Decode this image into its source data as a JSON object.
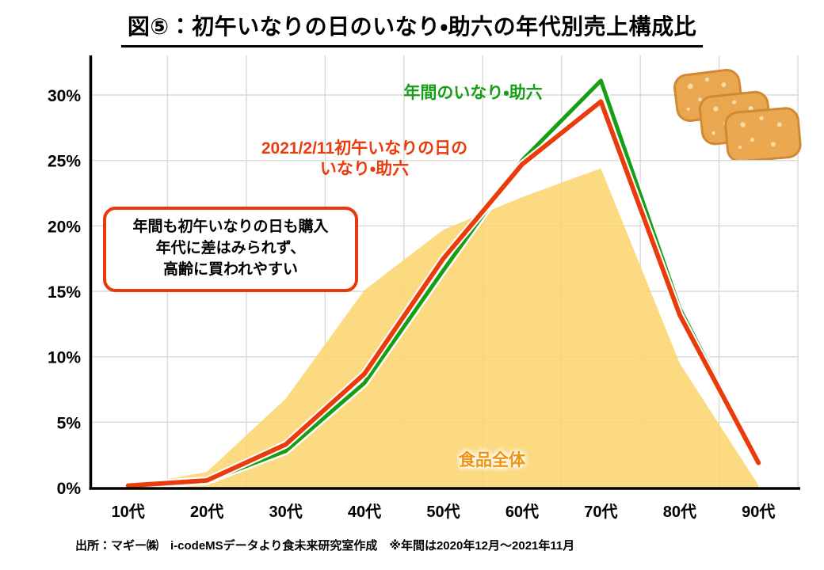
{
  "title": "図⑤：初午いなりの日のいなり・助六の年代別売上構成比",
  "footer": "出所：マギー㈱　i-codeMSデータより食未来研究室作成　※年間は2020年12月～2021年11月",
  "labels": {
    "green_series": "年間のいなり・助六",
    "red_series_line1": "2021/2/11初午いなりの日の",
    "red_series_line2": "いなり・助六",
    "area_series": "食品全体"
  },
  "annotation": {
    "line1": "年間も初午いなりの日も購入",
    "line2": "年代に差はみられず、",
    "line3": "高齢に買われやすい"
  },
  "icons": {
    "inari_illustration": "inari-sushi-three-pieces"
  },
  "colors": {
    "green_line": "#169E16",
    "red_line": "#EA3B0C",
    "area_fill": "#FBD36B",
    "area_label_text": "#EF940F",
    "annotation_border": "#E8380C",
    "gridline": "#D9D9D9",
    "axis": "#000000"
  },
  "chart_data": {
    "type": "area",
    "title": "図⑤：初午いなりの日のいなり・助六の年代別売上構成比",
    "categories": [
      "10代",
      "20代",
      "30代",
      "40代",
      "50代",
      "60代",
      "70代",
      "80代",
      "90代"
    ],
    "series": [
      {
        "name": "食品全体",
        "type": "area",
        "color": "#FBD36B",
        "values": [
          0.1,
          1.2,
          6.8,
          15.1,
          19.7,
          22.2,
          24.4,
          9.5,
          0.2
        ]
      },
      {
        "name": "年間のいなり・助六",
        "type": "line",
        "color": "#169E16",
        "values": [
          0.1,
          0.5,
          2.8,
          8.0,
          16.6,
          25.0,
          31.1,
          13.7,
          2.0
        ]
      },
      {
        "name": "2021/2/11初午いなりの日のいなり・助六",
        "type": "line",
        "color": "#EA3B0C",
        "values": [
          0.15,
          0.55,
          3.3,
          8.7,
          17.5,
          24.7,
          29.5,
          13.2,
          1.9
        ]
      }
    ],
    "xlabel": "",
    "ylabel": "",
    "y_ticks": [
      "0%",
      "5%",
      "10%",
      "15%",
      "20%",
      "25%",
      "30%"
    ],
    "y_tick_values": [
      0,
      5,
      10,
      15,
      20,
      25,
      30
    ],
    "ylim": [
      0,
      33
    ],
    "grid": true,
    "legend_position": "inline-text-labels"
  }
}
